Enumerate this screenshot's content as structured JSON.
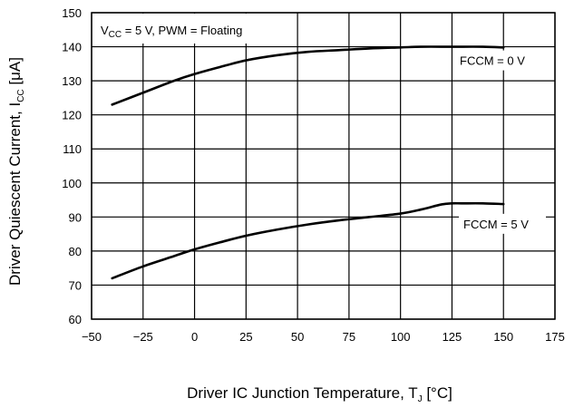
{
  "chart_data": {
    "type": "line",
    "title": "",
    "xlabel": "Driver IC Junction Temperature, T",
    "xlabel_sub": "J",
    "xlabel_unit": " [°C]",
    "ylabel": "Driver Quiescent Current, I",
    "ylabel_sub": "CC",
    "ylabel_unit": " [μA]",
    "xlim": [
      -50,
      175
    ],
    "ylim": [
      60,
      150
    ],
    "xticks": [
      -50,
      -25,
      0,
      25,
      50,
      75,
      100,
      125,
      150,
      175
    ],
    "xtick_labels": [
      "−50",
      "−25",
      "0",
      "25",
      "50",
      "75",
      "100",
      "125",
      "150",
      "175"
    ],
    "yticks": [
      60,
      70,
      80,
      90,
      100,
      110,
      120,
      130,
      140,
      150
    ],
    "grid": true,
    "condition": {
      "v": "V",
      "v_sub": "CC",
      "rest": " = 5 V, PWM = Floating"
    },
    "series": [
      {
        "name": "FCCM = 0 V",
        "x": [
          -40,
          -25,
          -10,
          0,
          12,
          25,
          40,
          55,
          70,
          85,
          100,
          110,
          125,
          140,
          150
        ],
        "y": [
          123,
          126.5,
          130,
          132,
          134,
          136,
          137.5,
          138.5,
          139,
          139.5,
          139.8,
          140,
          140,
          140,
          139.8
        ]
      },
      {
        "name": "FCCM = 5 V",
        "x": [
          -40,
          -25,
          -10,
          0,
          12,
          25,
          40,
          55,
          70,
          85,
          100,
          110,
          120,
          125,
          130,
          140,
          150
        ],
        "y": [
          72,
          75.5,
          78.5,
          80.5,
          82.5,
          84.5,
          86.3,
          87.8,
          89,
          90,
          91,
          92.2,
          93.7,
          94,
          94,
          94,
          93.8
        ]
      }
    ]
  },
  "colors": {
    "curve": "#000000",
    "grid": "#000000",
    "background": "#ffffff"
  }
}
